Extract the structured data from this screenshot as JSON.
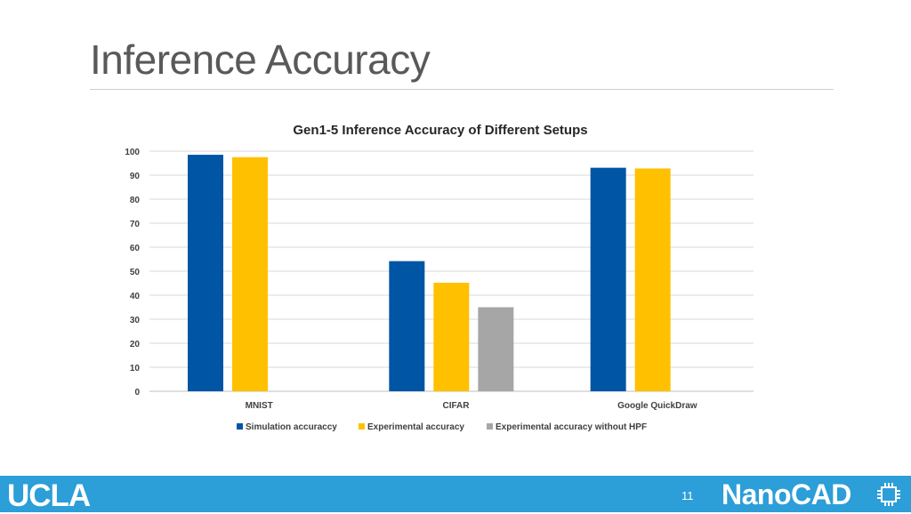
{
  "slide": {
    "title": "Inference Accuracy",
    "page_number": "11",
    "footer_left_logo": "UCLA",
    "footer_right_logo": "NanoCAD",
    "footer_color": "#2c9ed8"
  },
  "chart_data": {
    "type": "bar",
    "title": "Gen1-5 Inference Accuracy  of Different Setups",
    "categories": [
      "MNIST",
      "CIFAR",
      "Google QuickDraw"
    ],
    "series": [
      {
        "name": "Simulation accuraccy",
        "color": "#0055a5",
        "values": [
          98.5,
          54.2,
          93.1
        ]
      },
      {
        "name": "Experimental accuracy",
        "color": "#ffc000",
        "values": [
          97.5,
          45.2,
          92.8
        ]
      },
      {
        "name": "Experimental accuracy without HPF",
        "color": "#a6a6a6",
        "values": [
          null,
          35.0,
          null
        ]
      }
    ],
    "ylim": [
      0,
      100
    ],
    "yticks": [
      0,
      10,
      20,
      30,
      40,
      50,
      60,
      70,
      80,
      90,
      100
    ],
    "grid": true,
    "legend_position": "bottom"
  }
}
